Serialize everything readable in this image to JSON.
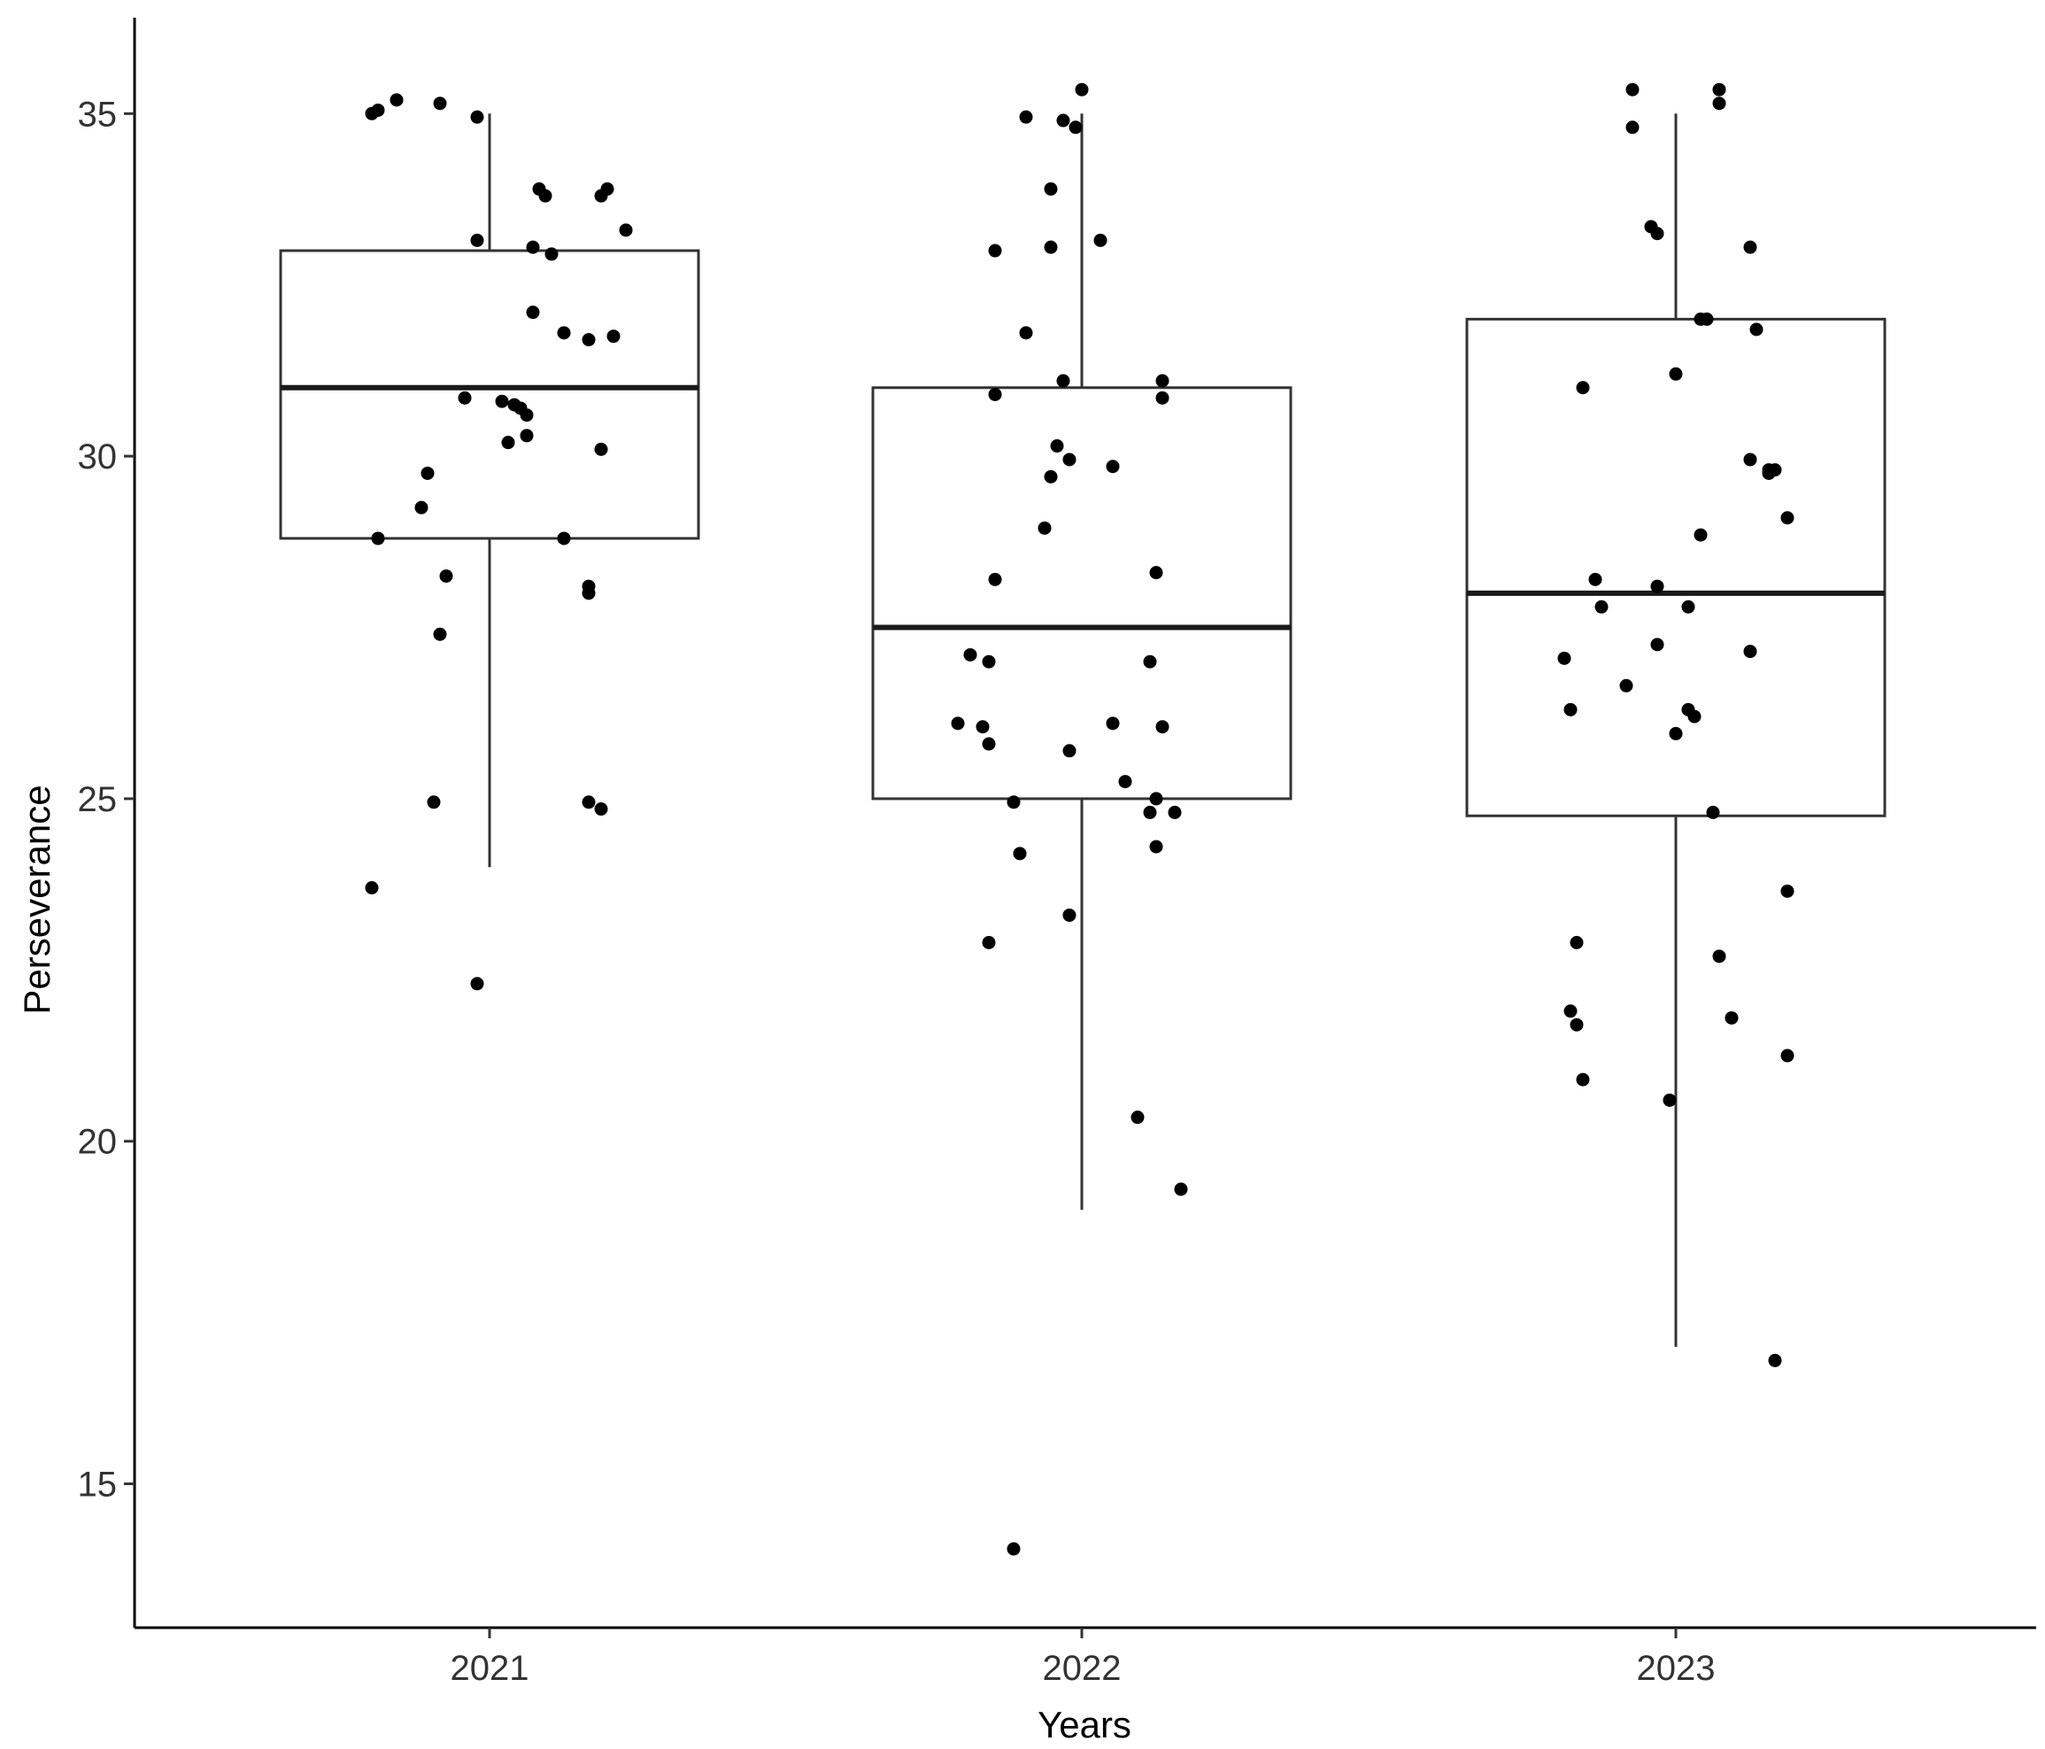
{
  "chart_data": {
    "type": "box",
    "xlabel": "Years",
    "ylabel": "Perseverance",
    "categories": [
      "2021",
      "2022",
      "2023"
    ],
    "ylim": [
      12.9,
      36.4
    ],
    "yticks": [
      15,
      20,
      25,
      30,
      35
    ],
    "grid": false,
    "boxes": [
      {
        "category": "2021",
        "whisker_low": 24.0,
        "q1": 28.8,
        "median": 31.0,
        "q3": 33.0,
        "whisker_high": 35.0
      },
      {
        "category": "2022",
        "whisker_low": 19.0,
        "q1": 25.0,
        "median": 27.5,
        "q3": 31.0,
        "whisker_high": 35.0
      },
      {
        "category": "2023",
        "whisker_low": 17.0,
        "q1": 24.75,
        "median": 28.0,
        "q3": 32.0,
        "whisker_high": 35.0
      }
    ],
    "points": [
      {
        "category": "2021",
        "jitter": [
          -0.19,
          -0.15,
          -0.08,
          -0.02,
          -0.18,
          0.08,
          0.09,
          0.18,
          0.19,
          -0.02,
          0.1,
          0.22,
          0.07,
          0.07,
          0.12,
          0.16,
          0.2,
          -0.04,
          0.02,
          0.04,
          0.05,
          0.06,
          0.03,
          0.06,
          0.18,
          -0.1,
          -0.11,
          0.12,
          -0.18,
          0.16,
          0.16,
          -0.07,
          -0.08,
          -0.09,
          0.18,
          0.16,
          -0.19,
          -0.02
        ],
        "values": [
          35.0,
          35.2,
          35.15,
          34.95,
          35.05,
          33.9,
          33.8,
          33.8,
          33.9,
          33.15,
          32.95,
          33.3,
          33.05,
          32.1,
          31.8,
          31.7,
          31.75,
          30.85,
          30.8,
          30.75,
          30.7,
          30.6,
          30.2,
          30.3,
          30.1,
          29.75,
          29.25,
          28.8,
          28.8,
          28.1,
          28.0,
          28.25,
          27.4,
          24.95,
          24.85,
          24.95,
          23.7,
          22.3
        ]
      },
      {
        "category": "2022",
        "jitter": [
          -0.09,
          -0.03,
          -0.01,
          0.0,
          -0.14,
          -0.05,
          0.03,
          -0.05,
          -0.09,
          -0.14,
          -0.03,
          0.13,
          0.13,
          -0.04,
          -0.05,
          0.05,
          -0.02,
          -0.06,
          0.12,
          -0.14,
          -0.18,
          -0.15,
          -0.16,
          0.11,
          -0.2,
          -0.15,
          0.05,
          0.13,
          -0.02,
          -0.11,
          0.07,
          0.11,
          0.12,
          0.15,
          0.12,
          -0.1,
          -0.02,
          -0.15,
          0.09,
          0.16,
          -0.11
        ],
        "values": [
          34.95,
          34.9,
          34.8,
          35.35,
          33.0,
          33.05,
          33.15,
          33.9,
          31.8,
          30.9,
          31.1,
          31.1,
          30.85,
          30.15,
          29.7,
          29.85,
          29.95,
          28.95,
          28.3,
          28.2,
          27.1,
          27.0,
          26.05,
          27.0,
          26.1,
          25.8,
          26.1,
          26.05,
          25.7,
          24.95,
          25.25,
          24.8,
          24.3,
          24.8,
          25.0,
          24.2,
          23.3,
          22.9,
          20.35,
          19.3,
          14.05
        ]
      },
      {
        "category": "2023",
        "jitter": [
          -0.07,
          0.07,
          -0.07,
          0.07,
          -0.03,
          -0.04,
          0.12,
          0.13,
          0.04,
          0.0,
          0.05,
          0.12,
          0.16,
          -0.15,
          0.15,
          0.15,
          0.18,
          0.04,
          -0.13,
          -0.12,
          -0.03,
          0.02,
          -0.03,
          -0.18,
          0.12,
          -0.08,
          0.03,
          0.02,
          -0.17,
          0.0,
          0.18,
          0.06,
          -0.16,
          -0.17,
          0.07,
          -0.16,
          0.09,
          0.18,
          -0.15,
          -0.01,
          0.16
        ],
        "values": [
          35.35,
          35.35,
          34.8,
          35.15,
          33.25,
          33.35,
          33.05,
          31.85,
          32.0,
          31.2,
          32.0,
          29.95,
          29.8,
          31.0,
          29.8,
          29.75,
          29.1,
          28.85,
          28.2,
          27.8,
          28.1,
          27.8,
          27.25,
          27.05,
          27.15,
          26.65,
          26.2,
          26.3,
          26.3,
          25.95,
          23.65,
          24.8,
          22.9,
          21.9,
          22.7,
          21.7,
          21.8,
          21.25,
          20.9,
          20.6,
          16.8
        ]
      }
    ]
  }
}
